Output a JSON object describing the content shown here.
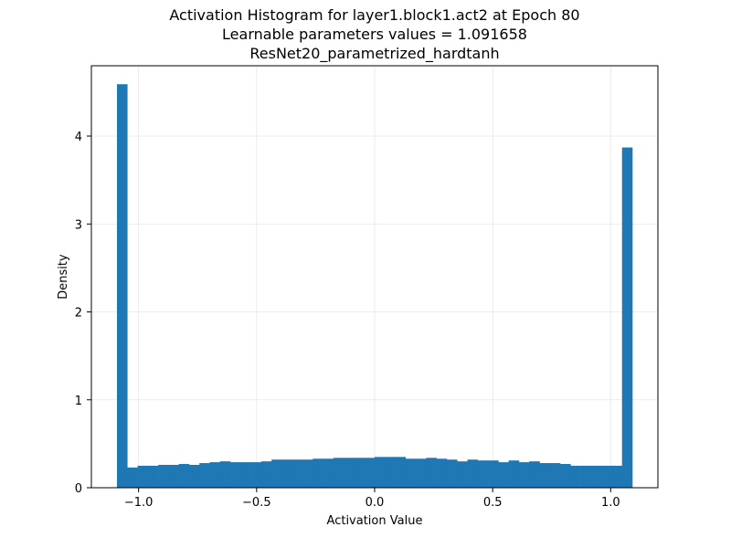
{
  "chart_data": {
    "type": "bar",
    "title_lines": [
      "Activation Histogram for layer1.block1.act2 at Epoch 80",
      "Learnable parameters values = 1.091658",
      "ResNet20_parametrized_hardtanh"
    ],
    "xlabel": "Activation Value",
    "ylabel": "Density",
    "xlim": [
      -1.2,
      1.2
    ],
    "ylim": [
      0,
      4.8
    ],
    "x_ticks": [
      -1.0,
      -0.5,
      0.0,
      0.5,
      1.0
    ],
    "x_tick_labels": [
      "−1.0",
      "−0.5",
      "0.0",
      "0.5",
      "1.0"
    ],
    "y_ticks": [
      0,
      1,
      2,
      3,
      4
    ],
    "y_tick_labels": [
      "0",
      "1",
      "2",
      "3",
      "4"
    ],
    "grid": true,
    "bin_range": [
      -1.091658,
      1.091658
    ],
    "values": [
      4.59,
      0.23,
      0.25,
      0.25,
      0.26,
      0.26,
      0.27,
      0.26,
      0.28,
      0.29,
      0.3,
      0.29,
      0.29,
      0.29,
      0.3,
      0.32,
      0.32,
      0.32,
      0.32,
      0.33,
      0.33,
      0.34,
      0.34,
      0.34,
      0.34,
      0.35,
      0.35,
      0.35,
      0.33,
      0.33,
      0.34,
      0.33,
      0.32,
      0.3,
      0.32,
      0.31,
      0.31,
      0.29,
      0.31,
      0.29,
      0.3,
      0.28,
      0.28,
      0.27,
      0.25,
      0.25,
      0.25,
      0.25,
      0.25,
      3.87
    ],
    "color": "#1f77b4",
    "grid_color": "#e6e6e6"
  }
}
